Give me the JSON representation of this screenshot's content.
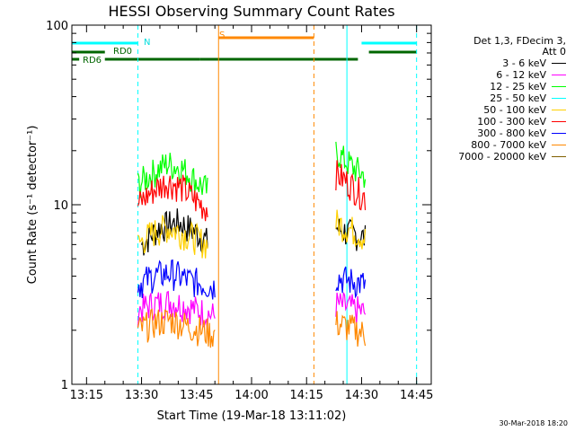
{
  "chart_data": {
    "type": "line",
    "title": "HESSI Observing Summary Count Rates",
    "xlabel": "Start Time (19-Mar-18 13:11:02)",
    "ylabel": "Count Rate (s⁻¹ detector⁻¹)",
    "yscale": "log",
    "ylim": [
      1,
      100
    ],
    "xlim": [
      "13:11",
      "14:49"
    ],
    "x_ticks": [
      "13:15",
      "13:30",
      "13:45",
      "14:00",
      "14:15",
      "14:30",
      "14:45"
    ],
    "y_ticks": [
      "1",
      "10",
      "100"
    ],
    "grid": false,
    "legend_position": "right",
    "legend_header": [
      "Det 1,3, FDecim 3,",
      "Att 0"
    ],
    "series": [
      {
        "name": "3 - 6 keV",
        "color": "#000000",
        "segments": [
          {
            "t": [
              "13:30",
              "13:35",
              "13:40",
              "13:45",
              "13:48"
            ],
            "y": [
              6.0,
              7.5,
              8.0,
              7.0,
              6.2
            ]
          },
          {
            "t": [
              "14:23",
              "14:26",
              "14:29",
              "14:31"
            ],
            "y": [
              7.5,
              7.0,
              6.8,
              6.5
            ]
          }
        ]
      },
      {
        "name": "6 - 12 keV",
        "color": "#ff00ff",
        "segments": [
          {
            "t": [
              "13:29",
              "13:33",
              "13:38",
              "13:43",
              "13:50"
            ],
            "y": [
              2.6,
              2.8,
              2.9,
              2.7,
              2.4
            ]
          },
          {
            "t": [
              "14:23",
              "14:26",
              "14:29",
              "14:31"
            ],
            "y": [
              2.8,
              2.7,
              2.6,
              2.5
            ]
          }
        ]
      },
      {
        "name": "12 - 25 keV",
        "color": "#00ff00",
        "segments": [
          {
            "t": [
              "13:29",
              "13:33",
              "13:37",
              "13:41",
              "13:45",
              "13:48"
            ],
            "y": [
              13.0,
              15.0,
              17.0,
              16.0,
              13.5,
              12.0
            ]
          },
          {
            "t": [
              "14:23",
              "14:25",
              "14:28",
              "14:31"
            ],
            "y": [
              20.0,
              18.0,
              16.0,
              14.5
            ]
          }
        ]
      },
      {
        "name": "25 - 50 keV",
        "color": "#00ffff",
        "segments": []
      },
      {
        "name": "50 - 100 keV",
        "color": "#ffd000",
        "segments": [
          {
            "t": [
              "13:29",
              "13:33",
              "13:37",
              "13:41",
              "13:45",
              "13:48"
            ],
            "y": [
              6.0,
              7.0,
              7.5,
              7.0,
              6.5,
              6.0
            ]
          },
          {
            "t": [
              "14:23",
              "14:26",
              "14:29",
              "14:31"
            ],
            "y": [
              8.0,
              7.5,
              7.0,
              6.5
            ]
          }
        ]
      },
      {
        "name": "100 - 300 keV",
        "color": "#ff0000",
        "segments": [
          {
            "t": [
              "13:29",
              "13:33",
              "13:37",
              "13:41",
              "13:45",
              "13:48"
            ],
            "y": [
              10.0,
              12.0,
              13.5,
              12.5,
              10.5,
              9.5
            ]
          },
          {
            "t": [
              "14:23",
              "14:25",
              "14:28",
              "14:31"
            ],
            "y": [
              15.0,
              14.0,
              12.5,
              11.0
            ]
          }
        ]
      },
      {
        "name": "300 - 800 keV",
        "color": "#0000ff",
        "segments": [
          {
            "t": [
              "13:29",
              "13:33",
              "13:38",
              "13:43",
              "13:50"
            ],
            "y": [
              3.6,
              4.0,
              4.2,
              3.8,
              3.5
            ]
          },
          {
            "t": [
              "14:23",
              "14:26",
              "14:29",
              "14:31"
            ],
            "y": [
              4.0,
              3.8,
              3.7,
              3.6
            ]
          }
        ]
      },
      {
        "name": "800 - 7000 keV",
        "color": "#ff8800",
        "segments": [
          {
            "t": [
              "13:29",
              "13:33",
              "13:38",
              "13:43",
              "13:50"
            ],
            "y": [
              2.0,
              2.2,
              2.3,
              2.1,
              1.9
            ]
          },
          {
            "t": [
              "14:23",
              "14:26",
              "14:29",
              "14:31"
            ],
            "y": [
              2.2,
              2.1,
              2.0,
              1.9
            ]
          }
        ]
      },
      {
        "name": "7000 - 20000 keV",
        "color": "#806000",
        "segments": []
      }
    ],
    "annotations": [
      {
        "text": "N",
        "color": "#00dddd"
      },
      {
        "text": "S",
        "color": "#ff8800"
      },
      {
        "text": "RD0",
        "color": "#006600"
      },
      {
        "text": "RD6",
        "color": "#006600"
      }
    ],
    "flag_bars": [
      {
        "name": "N",
        "color": "#00ffff",
        "ranges": [
          [
            "13:11",
            "13:29"
          ],
          [
            "14:30",
            "14:45"
          ]
        ]
      },
      {
        "name": "S",
        "color": "#ff8800",
        "ranges": [
          [
            "13:51",
            "14:17"
          ]
        ]
      },
      {
        "name": "RD0",
        "color": "#006600",
        "ranges": [
          [
            "13:11",
            "13:20"
          ],
          [
            "14:32",
            "14:45"
          ]
        ]
      },
      {
        "name": "RD6",
        "color": "#006600",
        "ranges": [
          [
            "13:11",
            "13:13"
          ],
          [
            "13:20",
            "13:46"
          ],
          [
            "13:46",
            "14:17"
          ],
          [
            "14:17",
            "14:29"
          ]
        ]
      }
    ],
    "vlines": [
      {
        "t": "13:11",
        "color": "#00ffff",
        "style": "solid"
      },
      {
        "t": "13:29",
        "color": "#00ffff",
        "style": "dashed"
      },
      {
        "t": "13:51",
        "color": "#ff8800",
        "style": "solid"
      },
      {
        "t": "14:17",
        "color": "#ff8800",
        "style": "dashed"
      },
      {
        "t": "14:26",
        "color": "#00ffff",
        "style": "solid"
      },
      {
        "t": "14:45",
        "color": "#00ffff",
        "style": "dashed"
      }
    ]
  },
  "footer": {
    "date_stamp": "30-Mar-2018 18:20"
  }
}
